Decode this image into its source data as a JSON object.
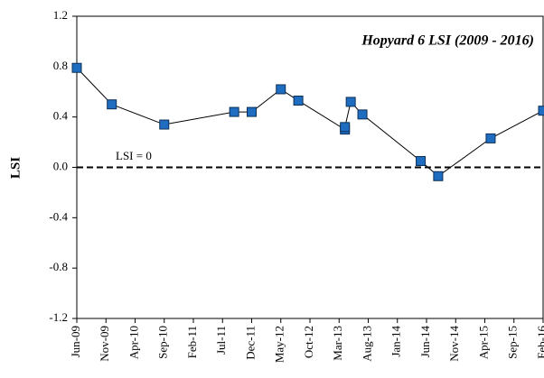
{
  "chart_data": {
    "type": "line",
    "title": "Hopyard 6 LSI (2009 - 2016)",
    "y_label": "LSI",
    "annotation": "LSI = 0",
    "reference_line": 0,
    "x": [
      "Jun-09",
      "Dec-09",
      "Sep-10",
      "Sep-11",
      "Dec-11",
      "May-12",
      "Aug-12",
      "Apr-13",
      "Apr-13",
      "May-13",
      "Jul-13",
      "May-14",
      "Aug-14",
      "May-15",
      "Feb-16"
    ],
    "series": [
      {
        "name": "LSI",
        "color": "#1f6dc0",
        "values": [
          0.79,
          0.5,
          0.34,
          0.44,
          0.44,
          0.62,
          0.53,
          0.3,
          0.32,
          0.52,
          0.42,
          0.05,
          -0.07,
          0.23,
          0.45
        ]
      }
    ],
    "xlim": [
      "Jun-09",
      "Feb-16"
    ],
    "xticks": [
      "Jun-09",
      "Nov-09",
      "Apr-10",
      "Sep-10",
      "Feb-11",
      "Jul-11",
      "Dec-11",
      "May-12",
      "Oct-12",
      "Mar-13",
      "Aug-13",
      "Jan-14",
      "Jun-14",
      "Nov-14",
      "Apr-15",
      "Sep-15",
      "Feb-16"
    ],
    "ylim": [
      -1.2,
      1.2
    ],
    "yticks": [
      -1.2,
      -0.8,
      -0.4,
      {
        "value": 0,
        "label": "0.0"
      },
      0.4,
      0.8,
      1.2
    ],
    "grid": false
  }
}
